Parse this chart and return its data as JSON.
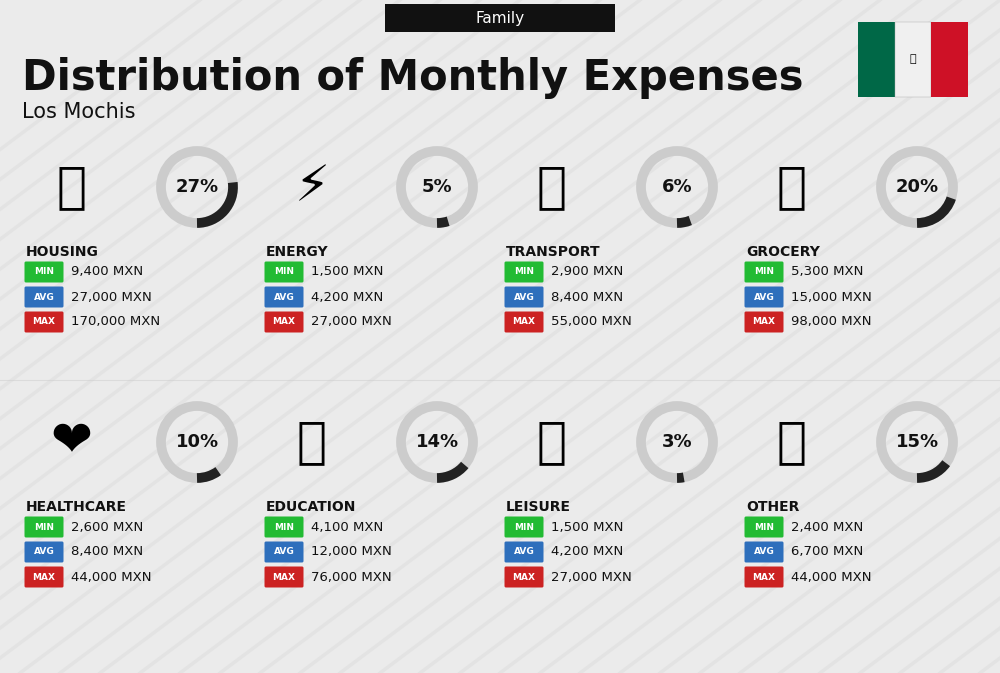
{
  "title": "Distribution of Monthly Expenses",
  "subtitle": "Los Mochis",
  "tag": "Family",
  "bg_color": "#ebebeb",
  "categories": [
    {
      "name": "HOUSING",
      "pct": 27,
      "min": "9,400 MXN",
      "avg": "27,000 MXN",
      "max": "170,000 MXN",
      "row": 0,
      "col": 0
    },
    {
      "name": "ENERGY",
      "pct": 5,
      "min": "1,500 MXN",
      "avg": "4,200 MXN",
      "max": "27,000 MXN",
      "row": 0,
      "col": 1
    },
    {
      "name": "TRANSPORT",
      "pct": 6,
      "min": "2,900 MXN",
      "avg": "8,400 MXN",
      "max": "55,000 MXN",
      "row": 0,
      "col": 2
    },
    {
      "name": "GROCERY",
      "pct": 20,
      "min": "5,300 MXN",
      "avg": "15,000 MXN",
      "max": "98,000 MXN",
      "row": 0,
      "col": 3
    },
    {
      "name": "HEALTHCARE",
      "pct": 10,
      "min": "2,600 MXN",
      "avg": "8,400 MXN",
      "max": "44,000 MXN",
      "row": 1,
      "col": 0
    },
    {
      "name": "EDUCATION",
      "pct": 14,
      "min": "4,100 MXN",
      "avg": "12,000 MXN",
      "max": "76,000 MXN",
      "row": 1,
      "col": 1
    },
    {
      "name": "LEISURE",
      "pct": 3,
      "min": "1,500 MXN",
      "avg": "4,200 MXN",
      "max": "27,000 MXN",
      "row": 1,
      "col": 2
    },
    {
      "name": "OTHER",
      "pct": 15,
      "min": "2,400 MXN",
      "avg": "6,700 MXN",
      "max": "44,000 MXN",
      "row": 1,
      "col": 3
    }
  ],
  "min_color": "#22bb33",
  "avg_color": "#2e6fbc",
  "max_color": "#cc2222",
  "text_color": "#111111",
  "arc_dark": "#222222",
  "arc_light": "#cccccc",
  "stripe_color": "#e0e0e0",
  "mexico_green": "#006847",
  "mexico_white": "#f0f0f0",
  "mexico_red": "#ce1126",
  "tag_bg": "#111111",
  "tag_fg": "#ffffff"
}
